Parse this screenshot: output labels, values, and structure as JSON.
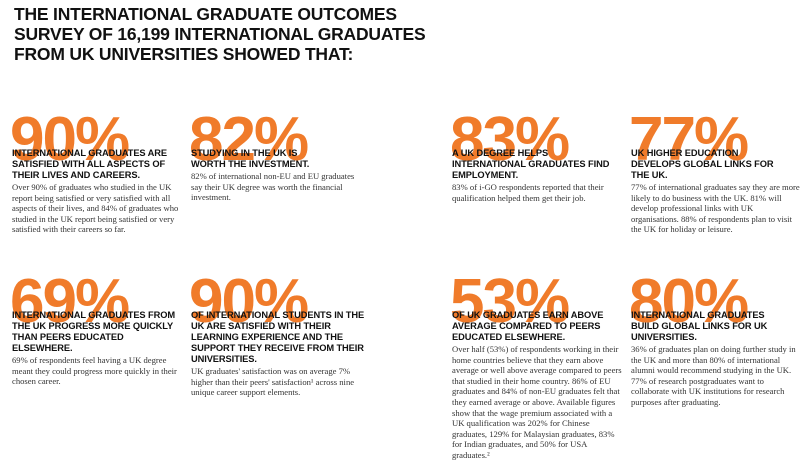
{
  "title": {
    "line1": "THE INTERNATIONAL GRADUATE OUTCOMES",
    "line2": "SURVEY OF 16,199 INTERNATIONAL GRADUATES",
    "line3": "FROM UK UNIVERSITIES SHOWED THAT:"
  },
  "stats": [
    {
      "percent": "90%",
      "headline": "INTERNATIONAL GRADUATES ARE SATISFIED WITH ALL ASPECTS OF THEIR LIVES AND CAREERS.",
      "body": "Over 90% of graduates who studied in the UK report being satisfied or very satisfied with all aspects of their lives, and 84% of graduates who studied in the UK report being satisfied or very satisfied with their careers so far."
    },
    {
      "percent": "82%",
      "headline": "STUDYING IN THE UK IS WORTH THE INVESTMENT.",
      "body": "82% of international non-EU and EU graduates say their UK degree was worth the financial investment."
    },
    {
      "percent": "83%",
      "headline": "A UK DEGREE HELPS INTERNATIONAL GRADUATES FIND EMPLOYMENT.",
      "body": "83% of i-GO respondents reported that their qualification helped them get their job."
    },
    {
      "percent": "77%",
      "headline": "UK HIGHER EDUCATION DEVELOPS GLOBAL LINKS FOR THE UK.",
      "body": "77% of international graduates say they are more likely to do business with the UK. 81% will develop professional links with UK organisations. 88% of respondents plan to visit the UK for holiday or leisure."
    },
    {
      "percent": "69%",
      "headline": "INTERNATIONAL GRADUATES FROM THE UK PROGRESS MORE QUICKLY THAN PEERS EDUCATED ELSEWHERE.",
      "body": "69% of respondents feel having a UK degree meant they could progress more quickly in their chosen career."
    },
    {
      "percent": "90%",
      "headline": "OF INTERNATIONAL STUDENTS IN THE UK ARE SATISFIED WITH THEIR LEARNING EXPERIENCE AND THE SUPPORT THEY RECEIVE FROM THEIR UNIVERSITIES.",
      "body": "UK graduates' satisfaction was on average 7% higher than their peers' satisfaction¹ across nine unique career support elements."
    },
    {
      "percent": "53%",
      "headline": "OF UK GRADUATES EARN ABOVE AVERAGE COMPARED TO PEERS EDUCATED ELSEWHERE.",
      "body": "Over half (53%) of respondents working in their home countries believe that they earn above average or well above average compared to peers that studied in their home country. 86% of EU graduates and 84% of non-EU graduates felt that they earned average or above. Available figures show that the wage premium associated with a UK qualification was 202% for Chinese graduates, 129% for Malaysian graduates, 83% for Indian graduates, and 50% for USA graduates.²"
    },
    {
      "percent": "80%",
      "headline": "INTERNATIONAL GRADUATES BUILD GLOBAL LINKS FOR UK UNIVERSITIES.",
      "body": "36% of graduates plan on doing further study in the UK and more than 80% of international alumni would recommend studying in the UK. 77% of research postgraduates want to collaborate with UK institutions for research purposes after graduating."
    }
  ],
  "colors": {
    "accent": "#f07b2a",
    "text": "#111111"
  }
}
